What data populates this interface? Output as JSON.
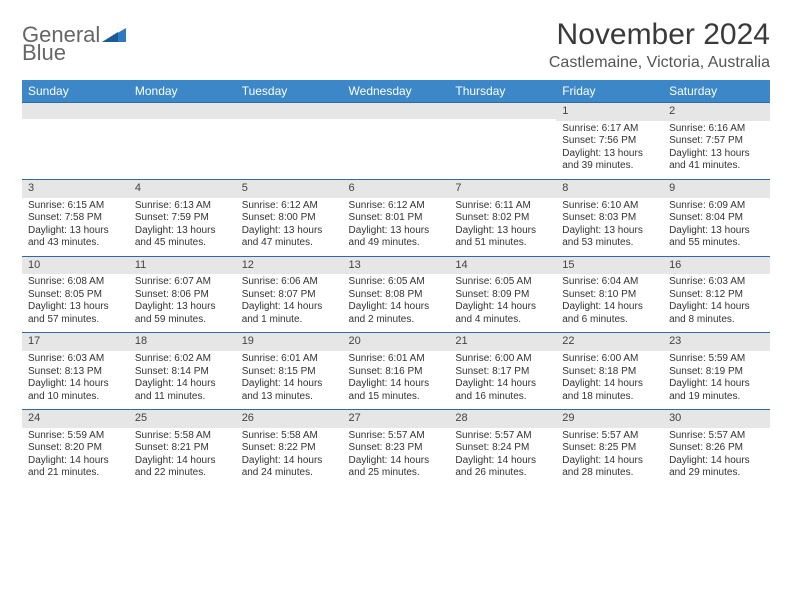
{
  "brand": {
    "general": "General",
    "blue": "Blue"
  },
  "title": "November 2024",
  "location": "Castlemaine, Victoria, Australia",
  "colors": {
    "header_bg": "#3b87c8",
    "header_text": "#ffffff",
    "row_border": "#2f6aa5",
    "daynum_bg": "#e6e6e6",
    "text": "#333333",
    "logo_gray": "#666666",
    "logo_blue": "#2e7ac2"
  },
  "day_headers": [
    "Sunday",
    "Monday",
    "Tuesday",
    "Wednesday",
    "Thursday",
    "Friday",
    "Saturday"
  ],
  "weeks": [
    [
      {
        "n": "",
        "sunrise": "",
        "sunset": "",
        "daylight": ""
      },
      {
        "n": "",
        "sunrise": "",
        "sunset": "",
        "daylight": ""
      },
      {
        "n": "",
        "sunrise": "",
        "sunset": "",
        "daylight": ""
      },
      {
        "n": "",
        "sunrise": "",
        "sunset": "",
        "daylight": ""
      },
      {
        "n": "",
        "sunrise": "",
        "sunset": "",
        "daylight": ""
      },
      {
        "n": "1",
        "sunrise": "Sunrise: 6:17 AM",
        "sunset": "Sunset: 7:56 PM",
        "daylight": "Daylight: 13 hours and 39 minutes."
      },
      {
        "n": "2",
        "sunrise": "Sunrise: 6:16 AM",
        "sunset": "Sunset: 7:57 PM",
        "daylight": "Daylight: 13 hours and 41 minutes."
      }
    ],
    [
      {
        "n": "3",
        "sunrise": "Sunrise: 6:15 AM",
        "sunset": "Sunset: 7:58 PM",
        "daylight": "Daylight: 13 hours and 43 minutes."
      },
      {
        "n": "4",
        "sunrise": "Sunrise: 6:13 AM",
        "sunset": "Sunset: 7:59 PM",
        "daylight": "Daylight: 13 hours and 45 minutes."
      },
      {
        "n": "5",
        "sunrise": "Sunrise: 6:12 AM",
        "sunset": "Sunset: 8:00 PM",
        "daylight": "Daylight: 13 hours and 47 minutes."
      },
      {
        "n": "6",
        "sunrise": "Sunrise: 6:12 AM",
        "sunset": "Sunset: 8:01 PM",
        "daylight": "Daylight: 13 hours and 49 minutes."
      },
      {
        "n": "7",
        "sunrise": "Sunrise: 6:11 AM",
        "sunset": "Sunset: 8:02 PM",
        "daylight": "Daylight: 13 hours and 51 minutes."
      },
      {
        "n": "8",
        "sunrise": "Sunrise: 6:10 AM",
        "sunset": "Sunset: 8:03 PM",
        "daylight": "Daylight: 13 hours and 53 minutes."
      },
      {
        "n": "9",
        "sunrise": "Sunrise: 6:09 AM",
        "sunset": "Sunset: 8:04 PM",
        "daylight": "Daylight: 13 hours and 55 minutes."
      }
    ],
    [
      {
        "n": "10",
        "sunrise": "Sunrise: 6:08 AM",
        "sunset": "Sunset: 8:05 PM",
        "daylight": "Daylight: 13 hours and 57 minutes."
      },
      {
        "n": "11",
        "sunrise": "Sunrise: 6:07 AM",
        "sunset": "Sunset: 8:06 PM",
        "daylight": "Daylight: 13 hours and 59 minutes."
      },
      {
        "n": "12",
        "sunrise": "Sunrise: 6:06 AM",
        "sunset": "Sunset: 8:07 PM",
        "daylight": "Daylight: 14 hours and 1 minute."
      },
      {
        "n": "13",
        "sunrise": "Sunrise: 6:05 AM",
        "sunset": "Sunset: 8:08 PM",
        "daylight": "Daylight: 14 hours and 2 minutes."
      },
      {
        "n": "14",
        "sunrise": "Sunrise: 6:05 AM",
        "sunset": "Sunset: 8:09 PM",
        "daylight": "Daylight: 14 hours and 4 minutes."
      },
      {
        "n": "15",
        "sunrise": "Sunrise: 6:04 AM",
        "sunset": "Sunset: 8:10 PM",
        "daylight": "Daylight: 14 hours and 6 minutes."
      },
      {
        "n": "16",
        "sunrise": "Sunrise: 6:03 AM",
        "sunset": "Sunset: 8:12 PM",
        "daylight": "Daylight: 14 hours and 8 minutes."
      }
    ],
    [
      {
        "n": "17",
        "sunrise": "Sunrise: 6:03 AM",
        "sunset": "Sunset: 8:13 PM",
        "daylight": "Daylight: 14 hours and 10 minutes."
      },
      {
        "n": "18",
        "sunrise": "Sunrise: 6:02 AM",
        "sunset": "Sunset: 8:14 PM",
        "daylight": "Daylight: 14 hours and 11 minutes."
      },
      {
        "n": "19",
        "sunrise": "Sunrise: 6:01 AM",
        "sunset": "Sunset: 8:15 PM",
        "daylight": "Daylight: 14 hours and 13 minutes."
      },
      {
        "n": "20",
        "sunrise": "Sunrise: 6:01 AM",
        "sunset": "Sunset: 8:16 PM",
        "daylight": "Daylight: 14 hours and 15 minutes."
      },
      {
        "n": "21",
        "sunrise": "Sunrise: 6:00 AM",
        "sunset": "Sunset: 8:17 PM",
        "daylight": "Daylight: 14 hours and 16 minutes."
      },
      {
        "n": "22",
        "sunrise": "Sunrise: 6:00 AM",
        "sunset": "Sunset: 8:18 PM",
        "daylight": "Daylight: 14 hours and 18 minutes."
      },
      {
        "n": "23",
        "sunrise": "Sunrise: 5:59 AM",
        "sunset": "Sunset: 8:19 PM",
        "daylight": "Daylight: 14 hours and 19 minutes."
      }
    ],
    [
      {
        "n": "24",
        "sunrise": "Sunrise: 5:59 AM",
        "sunset": "Sunset: 8:20 PM",
        "daylight": "Daylight: 14 hours and 21 minutes."
      },
      {
        "n": "25",
        "sunrise": "Sunrise: 5:58 AM",
        "sunset": "Sunset: 8:21 PM",
        "daylight": "Daylight: 14 hours and 22 minutes."
      },
      {
        "n": "26",
        "sunrise": "Sunrise: 5:58 AM",
        "sunset": "Sunset: 8:22 PM",
        "daylight": "Daylight: 14 hours and 24 minutes."
      },
      {
        "n": "27",
        "sunrise": "Sunrise: 5:57 AM",
        "sunset": "Sunset: 8:23 PM",
        "daylight": "Daylight: 14 hours and 25 minutes."
      },
      {
        "n": "28",
        "sunrise": "Sunrise: 5:57 AM",
        "sunset": "Sunset: 8:24 PM",
        "daylight": "Daylight: 14 hours and 26 minutes."
      },
      {
        "n": "29",
        "sunrise": "Sunrise: 5:57 AM",
        "sunset": "Sunset: 8:25 PM",
        "daylight": "Daylight: 14 hours and 28 minutes."
      },
      {
        "n": "30",
        "sunrise": "Sunrise: 5:57 AM",
        "sunset": "Sunset: 8:26 PM",
        "daylight": "Daylight: 14 hours and 29 minutes."
      }
    ]
  ]
}
